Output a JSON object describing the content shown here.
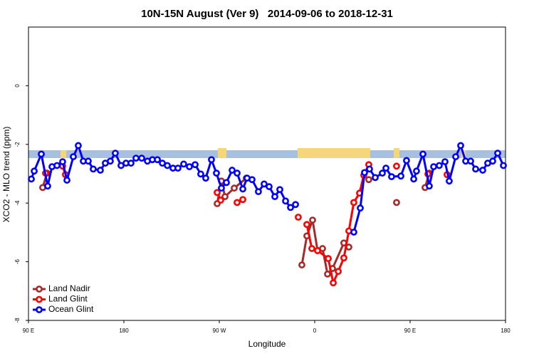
{
  "chart_data": {
    "type": "line",
    "title": "10N-15N August (Ver 9)   2014-09-06 to 2018-12-31",
    "x_label": "Longitude",
    "y_label": "XCO2 - MLO trend (ppm)",
    "xlim": [
      90,
      540
    ],
    "ylim": [
      -8,
      2
    ],
    "xticks": [
      {
        "value": 90,
        "label": "90 E"
      },
      {
        "value": 180,
        "label": "180"
      },
      {
        "value": 270,
        "label": "90 W"
      },
      {
        "value": 360,
        "label": "0"
      },
      {
        "value": 450,
        "label": "90 E"
      },
      {
        "value": 540,
        "label": "180"
      }
    ],
    "yticks": [
      -8,
      -6,
      -4,
      -2,
      0
    ],
    "legend": "bottom-left",
    "series": [
      {
        "name": "Land Nadir",
        "color": "#a52a2a",
        "x": [
          103.4,
          107.5,
          200,
          268.0,
          272.0,
          275.4,
          284.1,
          295.5,
          320,
          347.9,
          352.6,
          358.0,
          362.7,
          367.4,
          372.1,
          376.8,
          387.5,
          392.2,
          400,
          411.0,
          420,
          437.2,
          450,
          464.1,
          468.1
        ],
        "values": [
          -3.47,
          -2.98,
          null,
          -4.02,
          -3.25,
          -3.78,
          -3.49,
          -3.15,
          null,
          -6.11,
          -5.12,
          -4.58,
          -5.62,
          -5.55,
          -6.42,
          -6.23,
          -5.36,
          -5.5,
          null,
          -3.2,
          null,
          -3.98,
          null,
          -3.47,
          -2.98
        ]
      },
      {
        "name": "Land Glint",
        "color": "#ff0000",
        "x": [
          106.1,
          115,
          122.2,
          124.9,
          200,
          268.0,
          271.3,
          280,
          286.8,
          292.2,
          320,
          344.5,
          348,
          352.6,
          357.3,
          362.7,
          372.8,
          377.5,
          382.2,
          387.5,
          392.2,
          396.9,
          402.3,
          406.3,
          411.0,
          420,
          437.2,
          450,
          466.8,
          475,
          484.9
        ],
        "values": [
          -2.98,
          null,
          -2.74,
          -3.03,
          null,
          -3.64,
          -3.9,
          null,
          -3.98,
          -3.88,
          null,
          -4.48,
          null,
          -4.73,
          -5.55,
          -5.62,
          -5.89,
          -6.72,
          -6.33,
          -5.87,
          -4.95,
          -3.98,
          -3.66,
          -3.05,
          -2.69,
          null,
          -2.74,
          null,
          -3.01,
          null,
          -3.03
        ]
      },
      {
        "name": "Ocean Glint",
        "color": "#0000ff",
        "x": [
          92.7,
          95.4,
          102.1,
          108.1,
          112.2,
          116.9,
          122.2,
          126.3,
          132.3,
          137.0,
          141.7,
          146.4,
          151.1,
          157.8,
          162.5,
          167.2,
          171.9,
          177.3,
          182.0,
          186.7,
          191.4,
          196.8,
          202.2,
          206.9,
          211.6,
          216.3,
          221.0,
          226.3,
          231.0,
          236.4,
          241.8,
          247.2,
          252.5,
          257.2,
          262.6,
          267.3,
          272.0,
          276.7,
          282.1,
          286.8,
          292.2,
          296.2,
          300.9,
          306.9,
          312.3,
          317.0,
          322.4,
          327.1,
          332.5,
          337.2,
          341.9,
          350,
          396.9,
          403.0,
          407.0,
          411.7,
          417.1,
          423.8,
          427.2,
          432.5,
          441.3,
          446.6,
          453.4,
          456.0,
          462.1,
          468.1,
          472.2,
          477.5,
          482.9,
          486.9,
          493.0,
          497.7,
          502.4,
          507.1,
          511.8,
          518.5,
          523.2,
          527.9,
          532.6,
          538.0
        ],
        "values": [
          -3.18,
          -2.91,
          -2.33,
          -3.42,
          -2.76,
          -2.72,
          -2.59,
          -3.22,
          -2.42,
          -2.04,
          -2.57,
          -2.57,
          -2.84,
          -2.88,
          -2.64,
          -2.57,
          -2.3,
          -2.72,
          -2.64,
          -2.64,
          -2.47,
          -2.47,
          -2.57,
          -2.52,
          -2.52,
          -2.64,
          -2.72,
          -2.81,
          -2.81,
          -2.67,
          -2.76,
          -2.69,
          -3.01,
          -3.15,
          -2.52,
          -2.98,
          -3.49,
          -3.3,
          -2.88,
          -2.98,
          -3.52,
          -3.15,
          -3.2,
          -3.61,
          -3.35,
          -3.44,
          -3.78,
          -3.54,
          -3.93,
          -4.15,
          -4.05,
          null,
          -4.99,
          -4.17,
          -2.96,
          -2.84,
          -3.13,
          -2.98,
          -2.81,
          -3.1,
          -3.08,
          -2.55,
          -3.18,
          -2.91,
          -2.33,
          -3.42,
          -2.76,
          -2.72,
          -2.59,
          -3.25,
          -2.42,
          -2.04,
          -2.57,
          -2.57,
          -2.84,
          -2.88,
          -2.64,
          -2.57,
          -2.3,
          -2.72
        ]
      }
    ]
  }
}
